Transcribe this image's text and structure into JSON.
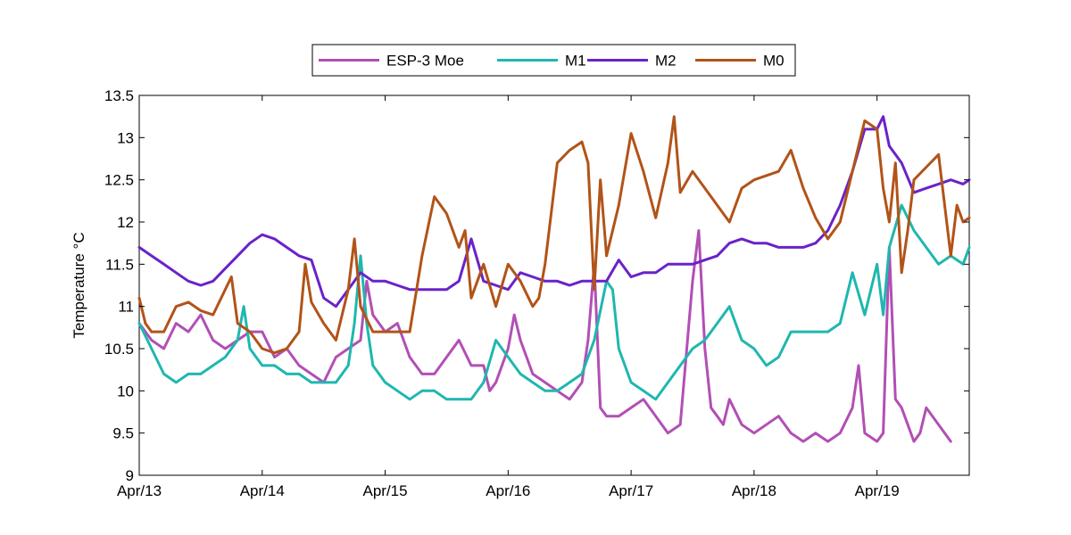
{
  "chart_data": {
    "type": "line",
    "title": "",
    "xlabel": "",
    "ylabel": "Temperature °C",
    "x_tick_labels": [
      "Apr/13",
      "Apr/14",
      "Apr/15",
      "Apr/16",
      "Apr/17",
      "Apr/18",
      "Apr/19"
    ],
    "x_tick_values": [
      13,
      14,
      15,
      16,
      17,
      18,
      19
    ],
    "xlim": [
      13,
      19.75
    ],
    "ylim": [
      9,
      13.5
    ],
    "y_ticks": [
      9,
      9.5,
      10,
      10.5,
      11,
      11.5,
      12,
      12.5,
      13,
      13.5
    ],
    "y_tick_labels": [
      "9",
      "9.5",
      "10",
      "10.5",
      "11",
      "11.5",
      "12",
      "12.5",
      "13",
      "13.5"
    ],
    "x_unit": "day of April",
    "grid": false,
    "legend_position": "top-center",
    "series": [
      {
        "name": "ESP-3 Moe",
        "color": "#b24fb5",
        "x": [
          13.0,
          13.1,
          13.2,
          13.3,
          13.4,
          13.5,
          13.6,
          13.7,
          13.8,
          13.9,
          14.0,
          14.1,
          14.2,
          14.3,
          14.4,
          14.5,
          14.6,
          14.7,
          14.8,
          14.85,
          14.9,
          15.0,
          15.1,
          15.2,
          15.3,
          15.4,
          15.5,
          15.6,
          15.7,
          15.8,
          15.85,
          15.9,
          16.0,
          16.05,
          16.1,
          16.2,
          16.3,
          16.4,
          16.5,
          16.6,
          16.65,
          16.7,
          16.75,
          16.8,
          16.9,
          17.0,
          17.1,
          17.2,
          17.3,
          17.4,
          17.5,
          17.55,
          17.6,
          17.65,
          17.7,
          17.75,
          17.8,
          17.9,
          18.0,
          18.1,
          18.2,
          18.3,
          18.4,
          18.5,
          18.6,
          18.7,
          18.8,
          18.85,
          18.9,
          19.0,
          19.05,
          19.1,
          19.15,
          19.2,
          19.25,
          19.3,
          19.35,
          19.4,
          19.5,
          19.6
        ],
        "y": [
          10.8,
          10.6,
          10.5,
          10.8,
          10.7,
          10.9,
          10.6,
          10.5,
          10.6,
          10.7,
          10.7,
          10.4,
          10.5,
          10.3,
          10.2,
          10.1,
          10.4,
          10.5,
          10.6,
          11.3,
          10.9,
          10.7,
          10.8,
          10.4,
          10.2,
          10.2,
          10.4,
          10.6,
          10.3,
          10.3,
          10.0,
          10.1,
          10.5,
          10.9,
          10.6,
          10.2,
          10.1,
          10.0,
          9.9,
          10.1,
          10.6,
          11.5,
          9.8,
          9.7,
          9.7,
          9.8,
          9.9,
          9.7,
          9.5,
          9.6,
          11.3,
          11.9,
          10.5,
          9.8,
          9.7,
          9.6,
          9.9,
          9.6,
          9.5,
          9.6,
          9.7,
          9.5,
          9.4,
          9.5,
          9.4,
          9.5,
          9.8,
          10.3,
          9.5,
          9.4,
          9.5,
          11.7,
          9.9,
          9.8,
          9.6,
          9.4,
          9.5,
          9.8,
          9.6,
          9.4
        ]
      },
      {
        "name": "M1",
        "color": "#1fb7b0",
        "x": [
          13.0,
          13.1,
          13.2,
          13.3,
          13.4,
          13.5,
          13.6,
          13.7,
          13.8,
          13.85,
          13.9,
          14.0,
          14.1,
          14.2,
          14.3,
          14.4,
          14.5,
          14.6,
          14.7,
          14.75,
          14.8,
          14.85,
          14.9,
          15.0,
          15.1,
          15.2,
          15.3,
          15.4,
          15.5,
          15.6,
          15.7,
          15.8,
          15.9,
          16.0,
          16.1,
          16.2,
          16.3,
          16.4,
          16.5,
          16.6,
          16.7,
          16.8,
          16.85,
          16.9,
          17.0,
          17.1,
          17.2,
          17.3,
          17.4,
          17.5,
          17.6,
          17.7,
          17.8,
          17.9,
          18.0,
          18.1,
          18.2,
          18.3,
          18.4,
          18.5,
          18.6,
          18.7,
          18.8,
          18.9,
          19.0,
          19.05,
          19.1,
          19.2,
          19.3,
          19.4,
          19.5,
          19.6,
          19.7,
          19.75
        ],
        "y": [
          10.8,
          10.5,
          10.2,
          10.1,
          10.2,
          10.2,
          10.3,
          10.4,
          10.6,
          11.0,
          10.5,
          10.3,
          10.3,
          10.2,
          10.2,
          10.1,
          10.1,
          10.1,
          10.3,
          10.8,
          11.6,
          10.8,
          10.3,
          10.1,
          10.0,
          9.9,
          10.0,
          10.0,
          9.9,
          9.9,
          9.9,
          10.1,
          10.6,
          10.4,
          10.2,
          10.1,
          10.0,
          10.0,
          10.1,
          10.2,
          10.6,
          11.3,
          11.2,
          10.5,
          10.1,
          10.0,
          9.9,
          10.1,
          10.3,
          10.5,
          10.6,
          10.8,
          11.0,
          10.6,
          10.5,
          10.3,
          10.4,
          10.7,
          10.7,
          10.7,
          10.7,
          10.8,
          11.4,
          10.9,
          11.5,
          10.9,
          11.7,
          12.2,
          11.9,
          11.7,
          11.5,
          11.6,
          11.5,
          11.7
        ]
      },
      {
        "name": "M2",
        "color": "#6a22c9",
        "x": [
          13.0,
          13.1,
          13.2,
          13.3,
          13.4,
          13.5,
          13.6,
          13.7,
          13.8,
          13.9,
          14.0,
          14.1,
          14.2,
          14.3,
          14.4,
          14.5,
          14.6,
          14.7,
          14.8,
          14.9,
          15.0,
          15.1,
          15.2,
          15.3,
          15.4,
          15.5,
          15.6,
          15.7,
          15.8,
          15.9,
          16.0,
          16.1,
          16.2,
          16.3,
          16.4,
          16.5,
          16.6,
          16.7,
          16.8,
          16.9,
          17.0,
          17.1,
          17.2,
          17.3,
          17.4,
          17.5,
          17.6,
          17.7,
          17.8,
          17.9,
          18.0,
          18.1,
          18.2,
          18.3,
          18.4,
          18.5,
          18.6,
          18.7,
          18.8,
          18.9,
          19.0,
          19.05,
          19.1,
          19.2,
          19.3,
          19.4,
          19.5,
          19.6,
          19.7,
          19.75
        ],
        "y": [
          11.7,
          11.6,
          11.5,
          11.4,
          11.3,
          11.25,
          11.3,
          11.45,
          11.6,
          11.75,
          11.85,
          11.8,
          11.7,
          11.6,
          11.55,
          11.1,
          11.0,
          11.2,
          11.4,
          11.3,
          11.3,
          11.25,
          11.2,
          11.2,
          11.2,
          11.2,
          11.3,
          11.8,
          11.3,
          11.25,
          11.2,
          11.4,
          11.35,
          11.3,
          11.3,
          11.25,
          11.3,
          11.3,
          11.3,
          11.55,
          11.35,
          11.4,
          11.4,
          11.5,
          11.5,
          11.5,
          11.55,
          11.6,
          11.75,
          11.8,
          11.75,
          11.75,
          11.7,
          11.7,
          11.7,
          11.75,
          11.9,
          12.2,
          12.6,
          13.1,
          13.1,
          13.25,
          12.9,
          12.7,
          12.35,
          12.4,
          12.45,
          12.5,
          12.45,
          12.5
        ]
      },
      {
        "name": "M0",
        "color": "#b25318",
        "x": [
          13.0,
          13.05,
          13.1,
          13.2,
          13.3,
          13.4,
          13.5,
          13.6,
          13.7,
          13.75,
          13.8,
          13.9,
          14.0,
          14.1,
          14.2,
          14.3,
          14.35,
          14.4,
          14.5,
          14.6,
          14.7,
          14.75,
          14.8,
          14.9,
          15.0,
          15.1,
          15.2,
          15.3,
          15.4,
          15.5,
          15.6,
          15.65,
          15.7,
          15.8,
          15.9,
          16.0,
          16.1,
          16.2,
          16.25,
          16.3,
          16.4,
          16.5,
          16.6,
          16.65,
          16.7,
          16.75,
          16.8,
          16.9,
          17.0,
          17.1,
          17.2,
          17.3,
          17.35,
          17.4,
          17.5,
          17.6,
          17.7,
          17.8,
          17.9,
          18.0,
          18.1,
          18.2,
          18.3,
          18.4,
          18.5,
          18.6,
          18.7,
          18.8,
          18.9,
          19.0,
          19.05,
          19.1,
          19.15,
          19.2,
          19.25,
          19.3,
          19.4,
          19.5,
          19.6,
          19.65,
          19.7,
          19.75
        ],
        "y": [
          11.1,
          10.8,
          10.7,
          10.7,
          11.0,
          11.05,
          10.95,
          10.9,
          11.2,
          11.35,
          10.8,
          10.7,
          10.5,
          10.45,
          10.5,
          10.7,
          11.5,
          11.05,
          10.8,
          10.6,
          11.2,
          11.8,
          11.0,
          10.7,
          10.7,
          10.7,
          10.7,
          11.6,
          12.3,
          12.1,
          11.7,
          11.9,
          11.1,
          11.5,
          11.0,
          11.5,
          11.3,
          11.0,
          11.1,
          11.5,
          12.7,
          12.85,
          12.95,
          12.7,
          11.2,
          12.5,
          11.6,
          12.2,
          13.05,
          12.6,
          12.05,
          12.7,
          13.25,
          12.35,
          12.6,
          12.4,
          12.2,
          12.0,
          12.4,
          12.5,
          12.55,
          12.6,
          12.85,
          12.4,
          12.05,
          11.8,
          12.0,
          12.6,
          13.2,
          13.1,
          12.4,
          12.0,
          12.7,
          11.4,
          11.9,
          12.5,
          12.65,
          12.8,
          11.6,
          12.2,
          12.0,
          12.05
        ]
      }
    ]
  }
}
